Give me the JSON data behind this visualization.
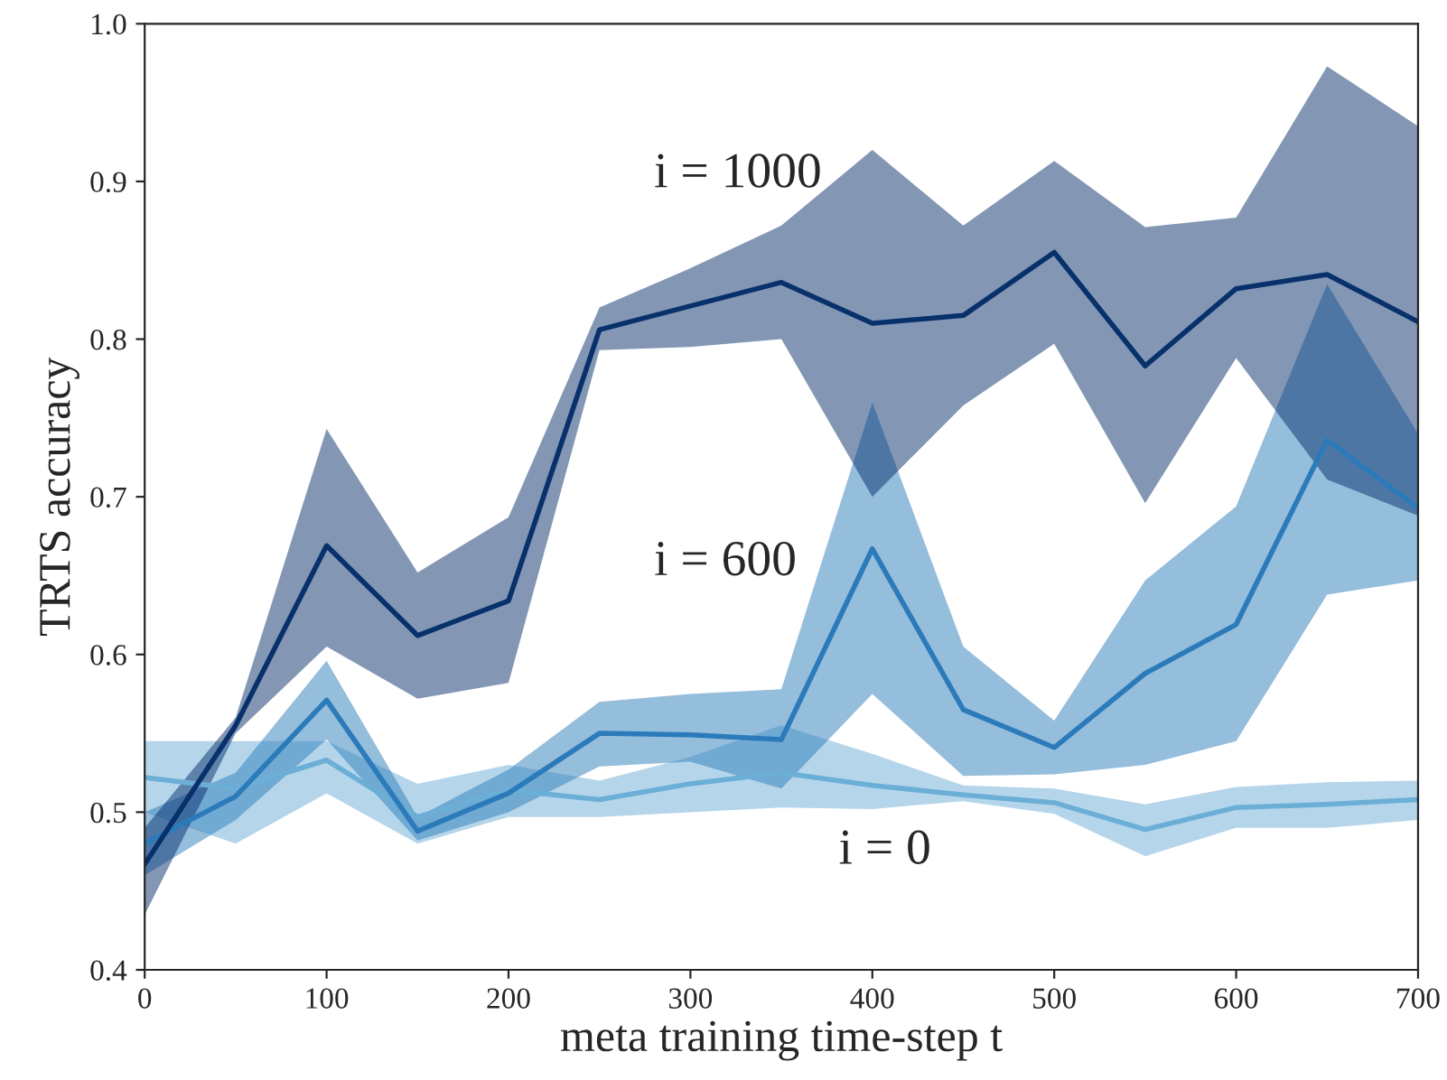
{
  "chart_data": {
    "type": "line",
    "xlabel": "meta training time-step t",
    "ylabel": "TRTS accuracy",
    "x": [
      0,
      50,
      100,
      150,
      200,
      250,
      300,
      350,
      400,
      450,
      500,
      550,
      600,
      650,
      700
    ],
    "xlim": [
      0,
      700
    ],
    "xticks": [
      0,
      100,
      200,
      300,
      400,
      500,
      600,
      700
    ],
    "ylim": [
      0.4,
      1.0
    ],
    "yticks": [
      0.4,
      0.5,
      0.6,
      0.7,
      0.8,
      0.9,
      {
        "value": 1.0,
        "label": "1.0"
      }
    ],
    "grid": false,
    "marker": "none",
    "line_style": "solid",
    "series": [
      {
        "color": "#6baed6",
        "values": [
          0.522,
          0.515,
          0.533,
          0.497,
          0.514,
          0.508,
          0.518,
          0.525,
          0.517,
          0.511,
          0.506,
          0.489,
          0.503,
          0.505,
          0.508
        ],
        "lower": [
          0.5,
          0.48,
          0.512,
          0.48,
          0.497,
          0.497,
          0.5,
          0.503,
          0.502,
          0.507,
          0.499,
          0.472,
          0.49,
          0.49,
          0.495
        ],
        "upper": [
          0.545,
          0.545,
          0.545,
          0.518,
          0.53,
          0.52,
          0.535,
          0.555,
          0.537,
          0.517,
          0.515,
          0.505,
          0.516,
          0.519,
          0.52
        ]
      },
      {
        "color": "#2b7bba",
        "values": [
          0.48,
          0.51,
          0.571,
          0.488,
          0.512,
          0.55,
          0.549,
          0.546,
          0.667,
          0.565,
          0.541,
          0.588,
          0.619,
          0.736,
          0.693
        ],
        "lower": [
          0.46,
          0.495,
          0.546,
          0.482,
          0.5,
          0.529,
          0.532,
          0.515,
          0.575,
          0.523,
          0.524,
          0.53,
          0.545,
          0.638,
          0.647
        ],
        "upper": [
          0.5,
          0.525,
          0.596,
          0.497,
          0.527,
          0.57,
          0.575,
          0.578,
          0.76,
          0.605,
          0.558,
          0.647,
          0.694,
          0.835,
          0.74
        ]
      },
      {
        "color": "#08306b",
        "values": [
          0.467,
          0.555,
          0.669,
          0.612,
          0.634,
          0.806,
          0.821,
          0.836,
          0.81,
          0.815,
          0.855,
          0.783,
          0.832,
          0.841,
          0.811
        ],
        "lower": [
          0.435,
          0.55,
          0.605,
          0.572,
          0.582,
          0.793,
          0.795,
          0.8,
          0.7,
          0.758,
          0.797,
          0.696,
          0.788,
          0.711,
          0.688
        ],
        "upper": [
          0.49,
          0.56,
          0.743,
          0.652,
          0.687,
          0.82,
          0.845,
          0.872,
          0.92,
          0.872,
          0.913,
          0.871,
          0.877,
          0.973,
          0.935
        ]
      }
    ],
    "annotations": [
      "i = 1000",
      "i = 600",
      "i = 0"
    ]
  }
}
